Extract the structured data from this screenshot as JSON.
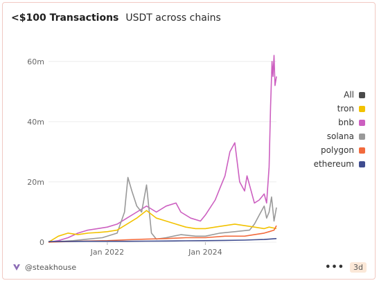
{
  "header": {
    "title": "<$100 Transactions",
    "subtitle": "USDT across chains"
  },
  "footer": {
    "brand": "@steakhouse",
    "more": "•••",
    "badge": "3d"
  },
  "legend": [
    {
      "label": "All",
      "color": "#4a4a4a"
    },
    {
      "label": "tron",
      "color": "#f2c200"
    },
    {
      "label": "bnb",
      "color": "#cc5fc0"
    },
    {
      "label": "solana",
      "color": "#999999"
    },
    {
      "label": "polygon",
      "color": "#f26a3d"
    },
    {
      "label": "ethereum",
      "color": "#3f4c8f"
    }
  ],
  "chart_data": {
    "type": "line",
    "title": "<$100 Transactions",
    "subtitle": "USDT across chains",
    "xlabel": "",
    "ylabel": "",
    "x_start": "2020-10",
    "x_end": "2025-06",
    "xlim": [
      2020.8,
      2025.45
    ],
    "ylim": [
      0,
      65000000
    ],
    "y_ticks": [
      0,
      20000000,
      40000000,
      60000000
    ],
    "y_tick_labels": [
      "0",
      "20m",
      "40m",
      "60m"
    ],
    "x_ticks": [
      2022.0,
      2024.0
    ],
    "x_tick_labels": [
      "Jan 2022",
      "Jan 2024"
    ],
    "grid": "horizontal",
    "legend_position": "right",
    "series": [
      {
        "name": "bnb",
        "color": "#cc5fc0",
        "x": [
          2020.8,
          2021.0,
          2021.2,
          2021.4,
          2021.6,
          2021.8,
          2022.0,
          2022.2,
          2022.4,
          2022.6,
          2022.8,
          2023.0,
          2023.2,
          2023.4,
          2023.5,
          2023.7,
          2023.9,
          2024.0,
          2024.2,
          2024.3,
          2024.4,
          2024.5,
          2024.6,
          2024.7,
          2024.8,
          2024.85,
          2024.9,
          2025.0,
          2025.1,
          2025.2,
          2025.25,
          2025.3,
          2025.33,
          2025.36,
          2025.38,
          2025.4,
          2025.42,
          2025.45
        ],
        "y": [
          0,
          500000,
          1500000,
          3000000,
          4000000,
          4500000,
          5000000,
          6000000,
          8000000,
          10000000,
          12000000,
          10000000,
          12000000,
          13000000,
          10000000,
          8000000,
          7000000,
          9000000,
          14000000,
          18000000,
          22000000,
          30000000,
          33000000,
          20000000,
          17000000,
          22000000,
          19000000,
          13000000,
          14000000,
          16000000,
          13000000,
          25000000,
          45000000,
          60000000,
          55000000,
          62000000,
          52000000,
          55000000
        ]
      },
      {
        "name": "solana",
        "color": "#999999",
        "x": [
          2020.8,
          2021.0,
          2021.3,
          2021.6,
          2021.9,
          2022.2,
          2022.35,
          2022.42,
          2022.5,
          2022.6,
          2022.7,
          2022.8,
          2022.9,
          2023.0,
          2023.2,
          2023.5,
          2023.8,
          2024.0,
          2024.3,
          2024.6,
          2024.9,
          2025.0,
          2025.1,
          2025.2,
          2025.25,
          2025.3,
          2025.35,
          2025.4,
          2025.45
        ],
        "y": [
          0,
          200000,
          500000,
          1000000,
          1500000,
          3000000,
          10000000,
          21500000,
          17000000,
          12000000,
          10000000,
          19000000,
          3000000,
          1000000,
          1500000,
          2500000,
          2000000,
          2000000,
          3000000,
          3500000,
          4000000,
          6000000,
          9000000,
          12000000,
          8000000,
          10000000,
          15000000,
          7000000,
          11500000
        ]
      },
      {
        "name": "tron",
        "color": "#f2c200",
        "x": [
          2020.8,
          2021.0,
          2021.2,
          2021.4,
          2021.6,
          2021.8,
          2022.0,
          2022.2,
          2022.4,
          2022.6,
          2022.8,
          2023.0,
          2023.2,
          2023.4,
          2023.6,
          2023.8,
          2024.0,
          2024.2,
          2024.4,
          2024.6,
          2024.8,
          2025.0,
          2025.2,
          2025.3,
          2025.45
        ],
        "y": [
          0,
          2000000,
          3000000,
          2500000,
          3000000,
          3200000,
          3500000,
          4000000,
          6000000,
          8000000,
          10500000,
          8000000,
          7000000,
          6000000,
          5000000,
          4500000,
          4500000,
          5000000,
          5500000,
          6000000,
          5500000,
          5000000,
          4500000,
          5000000,
          4500000
        ]
      },
      {
        "name": "polygon",
        "color": "#f26a3d",
        "x": [
          2020.8,
          2021.2,
          2021.6,
          2022.0,
          2022.4,
          2022.8,
          2023.2,
          2023.6,
          2024.0,
          2024.4,
          2024.8,
          2025.0,
          2025.2,
          2025.3,
          2025.4,
          2025.45
        ],
        "y": [
          0,
          200000,
          400000,
          500000,
          800000,
          1000000,
          1200000,
          1500000,
          1500000,
          2000000,
          2000000,
          2500000,
          3000000,
          3500000,
          4000000,
          5500000
        ]
      },
      {
        "name": "ethereum",
        "color": "#3f4c8f",
        "x": [
          2020.8,
          2021.2,
          2021.6,
          2022.0,
          2022.4,
          2022.8,
          2023.2,
          2023.6,
          2024.0,
          2024.4,
          2024.8,
          2025.0,
          2025.2,
          2025.3,
          2025.45
        ],
        "y": [
          200000,
          250000,
          300000,
          300000,
          300000,
          350000,
          400000,
          450000,
          500000,
          600000,
          700000,
          800000,
          900000,
          1000000,
          1200000
        ]
      }
    ]
  }
}
